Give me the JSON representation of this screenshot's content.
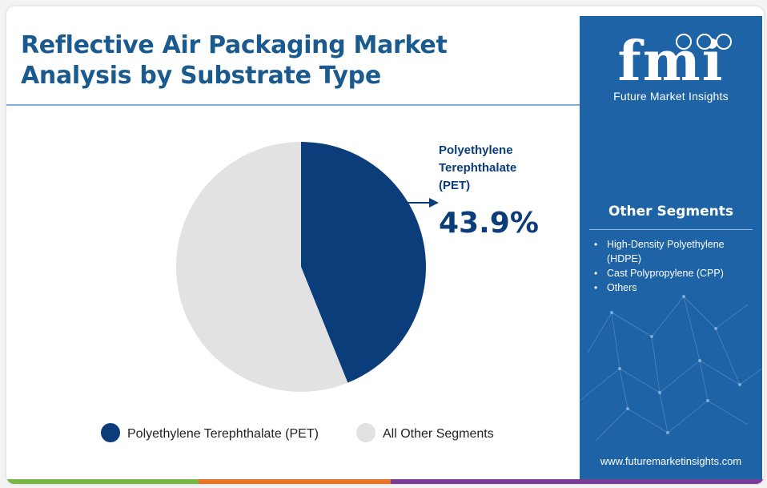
{
  "title": "Reflective Air Packaging Market Analysis by Substrate Type",
  "chart_data": {
    "type": "pie",
    "title": "Reflective Air Packaging Market Analysis by Substrate Type",
    "slices": [
      {
        "label": "Polyethylene Terephthalate (PET)",
        "value": 43.9,
        "color": "#0b3d7a"
      },
      {
        "label": "All Other Segments",
        "value": 56.1,
        "color": "#e2e2e3"
      }
    ],
    "callout": {
      "label_lines": [
        "Polyethylene",
        "Terephthalate",
        "(PET)"
      ],
      "value_text": "43.9%"
    },
    "legend": {
      "placement": "bottom",
      "entries": [
        "Polyethylene Terephthalate (PET)",
        "All Other Segments"
      ]
    }
  },
  "sidebar": {
    "logo_text": "fmi",
    "logo_subtitle": "Future Market Insights",
    "heading": "Other Segments",
    "items": [
      "High-Density Polyethylene (HDPE)",
      "Cast Polypropylene (CPP)",
      "Others"
    ],
    "url": "www.futuremarketinsights.com"
  },
  "colors": {
    "brand_blue": "#1d63a6",
    "title_blue": "#1a5a8f",
    "pet_navy": "#0b3d7a",
    "other_grey": "#e2e2e3",
    "bar_green": "#7ab648",
    "bar_orange": "#e8742a",
    "bar_purple": "#7a3c97"
  }
}
